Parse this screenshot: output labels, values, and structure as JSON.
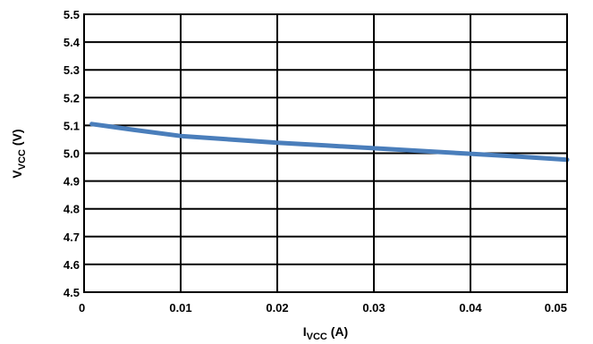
{
  "chart_data": {
    "type": "line",
    "xlabel": {
      "main": "I",
      "sub": "VCC",
      "unit": " (A)"
    },
    "ylabel": {
      "main": "V",
      "sub": "VCC",
      "unit": " (V)"
    },
    "xlim": [
      0,
      0.05
    ],
    "ylim": [
      4.5,
      5.5
    ],
    "x_ticks": [
      "0",
      "0.01",
      "0.02",
      "0.03",
      "0.04",
      "0.05"
    ],
    "y_ticks": [
      "4.5",
      "4.6",
      "4.7",
      "4.8",
      "4.9",
      "5.0",
      "5.1",
      "5.2",
      "5.3",
      "5.4",
      "5.5"
    ],
    "grid": true,
    "series": [
      {
        "x": [
          0.0008,
          0.005,
          0.01,
          0.015,
          0.02,
          0.025,
          0.03,
          0.035,
          0.04,
          0.045,
          0.05
        ],
        "y": [
          5.105,
          5.085,
          5.062,
          5.05,
          5.038,
          5.028,
          5.018,
          5.008,
          4.998,
          4.988,
          4.977
        ],
        "color": "#4a7ebb"
      }
    ]
  }
}
